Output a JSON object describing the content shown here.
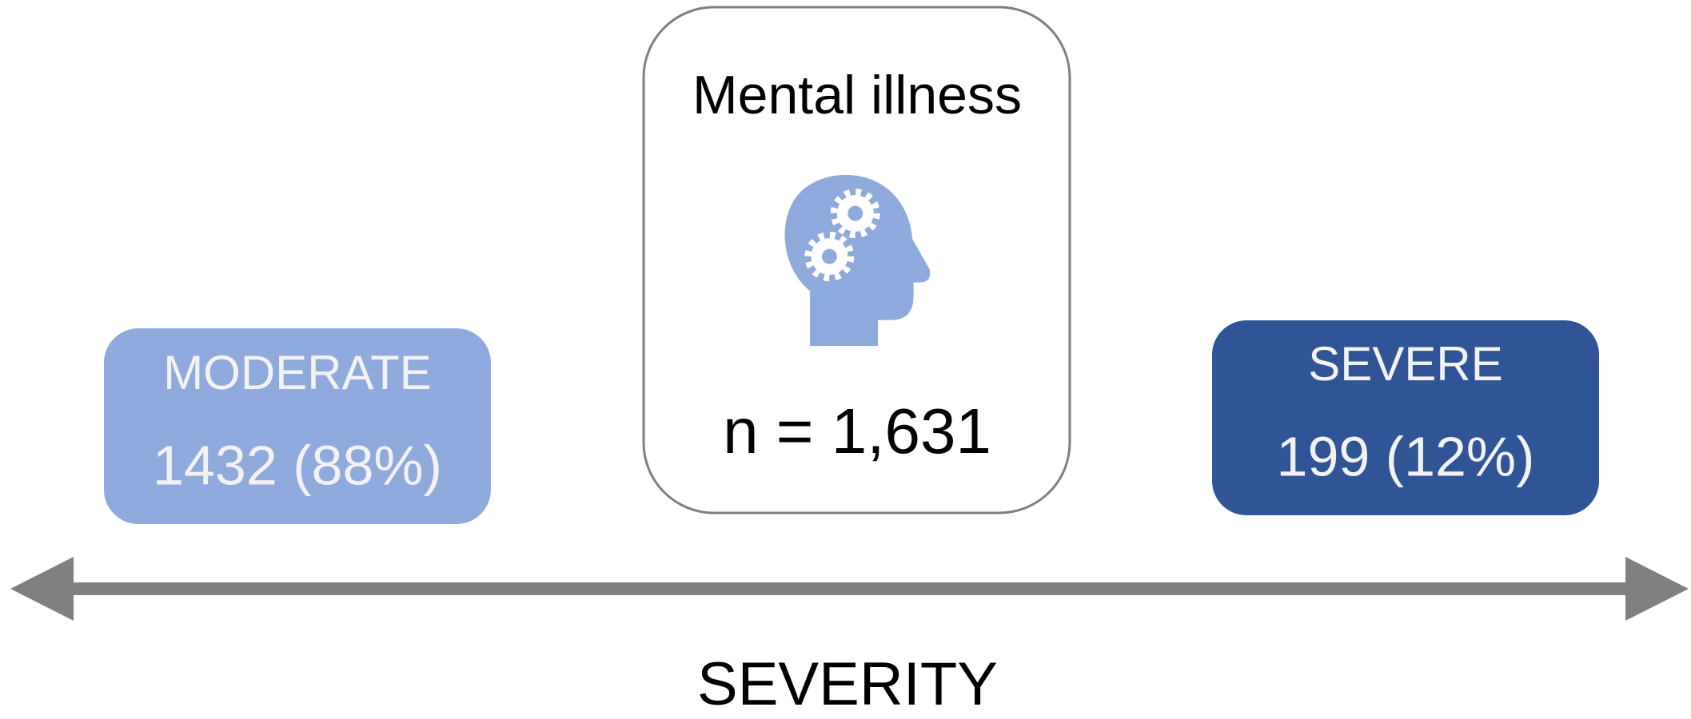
{
  "center": {
    "title": "Mental illness",
    "count": "n = 1,631"
  },
  "left": {
    "label": "MODERATE",
    "value": "1432 (88%)"
  },
  "right": {
    "label": "SEVERE",
    "value": "199 (12%)"
  },
  "axis": {
    "label": "SEVERITY"
  }
}
